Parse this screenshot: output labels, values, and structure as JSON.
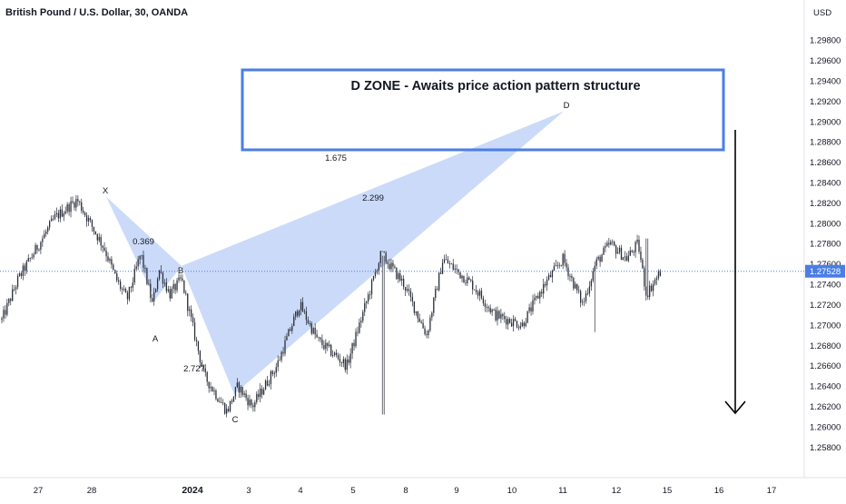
{
  "title": "British Pound / U.S. Dollar, 30, OANDA",
  "currency": "USD",
  "last_price": "1.27528",
  "annotation": {
    "zone_text": "D ZONE - Awaits price action pattern structure",
    "d_label": "D",
    "ratios": [
      "1.675",
      "2.299",
      "0.369",
      "2.727"
    ],
    "points": [
      "X",
      "A",
      "B",
      "C"
    ]
  },
  "colors": {
    "candles": "#2a2e39",
    "pattern_fill": "#b9cdf7",
    "zone_border": "#4a7ee6",
    "price_line": "#4a7ee6",
    "last_price_badge": "#4a7ee6",
    "arrow": "#000000"
  },
  "chart_data": {
    "type": "candlestick",
    "title": "British Pound / U.S. Dollar, 30, OANDA",
    "ylabel": "USD",
    "ylim": [
      1.2566,
      1.3006
    ],
    "y_ticks": [
      "1.29800",
      "1.29600",
      "1.29400",
      "1.29200",
      "1.29000",
      "1.28800",
      "1.28600",
      "1.28400",
      "1.28200",
      "1.28000",
      "1.27800",
      "1.27600",
      "1.27400",
      "1.27200",
      "1.27000",
      "1.26800",
      "1.26600",
      "1.26400",
      "1.26200",
      "1.26000",
      "1.25800"
    ],
    "x_ticks": [
      "27",
      "28",
      "2024",
      "3",
      "4",
      "5",
      "8",
      "9",
      "10",
      "11",
      "12",
      "15",
      "16",
      "17"
    ],
    "last_price": 1.27528,
    "close_path": [
      {
        "date": "Dec 26",
        "price": 1.2705
      },
      {
        "date": "Dec 27",
        "price": 1.2745
      },
      {
        "date": "Dec 27",
        "price": 1.2805
      },
      {
        "date": "Dec 28",
        "price": 1.2823
      },
      {
        "date": "Dec 28",
        "price": 1.2775
      },
      {
        "date": "Dec 28",
        "price": 1.2745
      },
      {
        "date": "Dec 29",
        "price": 1.2725
      },
      {
        "date": "Dec 29",
        "price": 1.277
      },
      {
        "date": "Dec 29",
        "price": 1.272
      },
      {
        "date": "Dec 29",
        "price": 1.2755
      },
      {
        "date": "Jan 2",
        "price": 1.273
      },
      {
        "date": "Jan 2",
        "price": 1.2745
      },
      {
        "date": "Jan 2",
        "price": 1.265
      },
      {
        "date": "Jan 3",
        "price": 1.2615
      },
      {
        "date": "Jan 3",
        "price": 1.264
      },
      {
        "date": "Jan 3",
        "price": 1.262
      },
      {
        "date": "Jan 4",
        "price": 1.266
      },
      {
        "date": "Jan 4",
        "price": 1.272
      },
      {
        "date": "Jan 5",
        "price": 1.2685
      },
      {
        "date": "Jan 5",
        "price": 1.266
      },
      {
        "date": "Jan 5",
        "price": 1.277
      },
      {
        "date": "Jan 8",
        "price": 1.274
      },
      {
        "date": "Jan 8",
        "price": 1.269
      },
      {
        "date": "Jan 8",
        "price": 1.2765
      },
      {
        "date": "Jan 9",
        "price": 1.274
      },
      {
        "date": "Jan 9",
        "price": 1.271
      },
      {
        "date": "Jan 10",
        "price": 1.27
      },
      {
        "date": "Jan 10",
        "price": 1.274
      },
      {
        "date": "Jan 11",
        "price": 1.2765
      },
      {
        "date": "Jan 11",
        "price": 1.272
      },
      {
        "date": "Jan 11",
        "price": 1.276
      },
      {
        "date": "Jan 12",
        "price": 1.278
      },
      {
        "date": "Jan 12",
        "price": 1.2765
      },
      {
        "date": "Jan 12",
        "price": 1.278
      },
      {
        "date": "Jan 12",
        "price": 1.273
      },
      {
        "date": "Jan 12",
        "price": 1.27528
      }
    ],
    "harmonic_points": [
      {
        "label": "X",
        "date": "Dec 28",
        "price": 1.2826
      },
      {
        "label": "A",
        "date": "Dec 29",
        "price": 1.2725
      },
      {
        "label": "B",
        "date": "Dec 29",
        "price": 1.2758
      },
      {
        "label": "C",
        "date": "Jan 3",
        "price": 1.2632
      },
      {
        "label": "D",
        "date": "Jan 11",
        "price": 1.291
      }
    ],
    "fib_ratios": [
      {
        "label": "0.369",
        "leg": "XA-AB"
      },
      {
        "label": "2.727",
        "leg": "AB-BC"
      },
      {
        "label": "2.299",
        "leg": "XA-CD"
      },
      {
        "label": "1.675",
        "leg": "BC-CD"
      }
    ],
    "zone": {
      "label": "D ZONE - Awaits price action pattern structure",
      "y_top": 1.2955,
      "y_bottom": 1.2876
    },
    "projection_arrow": {
      "from": 1.2895,
      "to": 1.2616,
      "direction": "down"
    }
  }
}
